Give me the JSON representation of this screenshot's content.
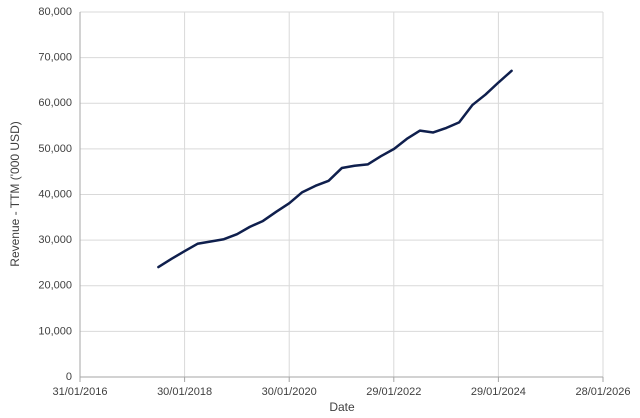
{
  "chart_data": {
    "type": "line",
    "x_label": "Date",
    "y_label": "Revenue - TTM ('000 USD)",
    "x": [
      "31/07/2017",
      "31/10/2017",
      "31/01/2018",
      "30/04/2018",
      "31/07/2018",
      "31/10/2018",
      "31/01/2019",
      "30/04/2019",
      "31/07/2019",
      "31/10/2019",
      "31/01/2020",
      "30/04/2020",
      "31/07/2020",
      "31/10/2020",
      "31/01/2021",
      "30/04/2021",
      "31/07/2021",
      "31/10/2021",
      "31/01/2022",
      "30/04/2022",
      "31/07/2022",
      "31/10/2022",
      "31/01/2023",
      "30/04/2023",
      "31/07/2023",
      "31/10/2023",
      "31/01/2024",
      "30/04/2024"
    ],
    "values": [
      24100,
      25900,
      27600,
      29200,
      29700,
      30200,
      31300,
      32900,
      34200,
      36200,
      38100,
      40500,
      41900,
      43000,
      45800,
      46300,
      46600,
      48400,
      50000,
      52200,
      54000,
      53600,
      54600,
      55800,
      59600,
      61900,
      64600,
      67100
    ],
    "color": "#0f1f4d",
    "xlim": [
      "31/01/2016",
      "28/01/2026"
    ],
    "xticks": [
      "31/01/2016",
      "30/01/2018",
      "30/01/2020",
      "29/01/2022",
      "29/01/2024",
      "28/01/2026"
    ],
    "ylim": [
      0,
      80000
    ],
    "yticks": [
      0,
      {
        "value": 10000,
        "label": "10,000"
      },
      {
        "value": 20000,
        "label": "20,000"
      },
      {
        "value": 30000,
        "label": "30,000"
      },
      {
        "value": 40000,
        "label": "40,000"
      },
      {
        "value": 50000,
        "label": "50,000"
      },
      {
        "value": 60000,
        "label": "60,000"
      },
      {
        "value": 70000,
        "label": "70,000"
      },
      {
        "value": 80000,
        "label": "80,000"
      }
    ],
    "grid": true
  }
}
